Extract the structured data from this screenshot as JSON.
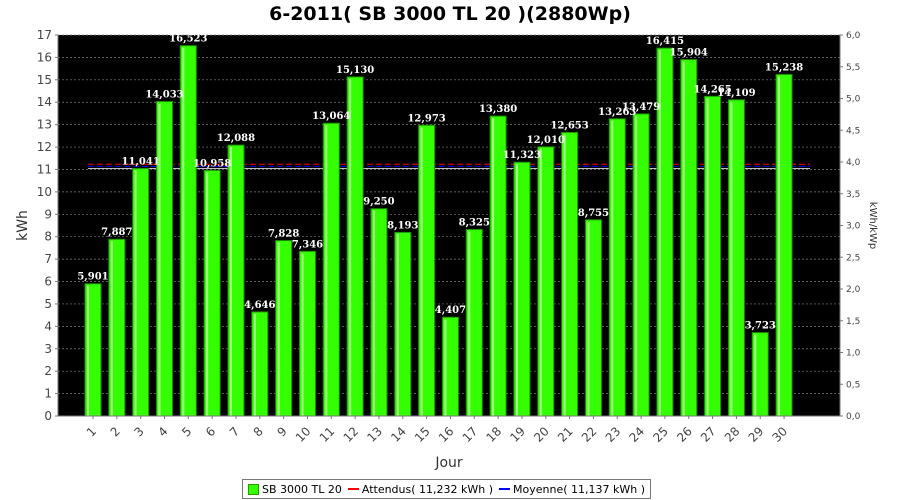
{
  "title": "6-2011( SB 3000 TL 20 )(2880Wp)",
  "colors": {
    "bar": "#33ff00",
    "bar_border": "#1f8c00",
    "plot_background": "#000000",
    "grid": "#7f7f7f",
    "attendu": "#ff0000",
    "moyenne": "#0000ff",
    "reference_line": "#ffffff"
  },
  "legend": {
    "bar_label": "SB 3000 TL 20",
    "attendu_label": "Attendus( 11,232 kWh )",
    "moyenne_label": "Moyenne( 11,137 kWh )"
  },
  "chart_data": {
    "type": "bar",
    "title": "6-2011( SB 3000 TL 20 )(2880Wp)",
    "xlabel": "Jour",
    "ylabel": "kWh",
    "y2label": "kWh/kWp",
    "ylim": [
      0,
      17
    ],
    "yticks": [
      "0",
      "1",
      "2",
      "3",
      "4",
      "5",
      "6",
      "7",
      "8",
      "9",
      "10",
      "11",
      "12",
      "13",
      "14",
      "15",
      "16",
      "17"
    ],
    "y2lim": [
      0,
      6
    ],
    "y2ticks": [
      "0,0",
      "0,5",
      "1,0",
      "1,5",
      "2,0",
      "2,5",
      "3,0",
      "3,5",
      "4,0",
      "4,5",
      "5,0",
      "5,5",
      "6,0"
    ],
    "categories": [
      "1",
      "2",
      "3",
      "4",
      "5",
      "6",
      "7",
      "8",
      "9",
      "10",
      "11",
      "12",
      "13",
      "14",
      "15",
      "16",
      "17",
      "18",
      "19",
      "20",
      "21",
      "22",
      "23",
      "24",
      "25",
      "26",
      "27",
      "28",
      "29",
      "30"
    ],
    "values": [
      5.901,
      7.887,
      11.041,
      14.033,
      16.523,
      10.958,
      12.088,
      4.646,
      7.828,
      7.346,
      13.064,
      15.13,
      9.25,
      8.193,
      12.973,
      4.407,
      8.325,
      13.38,
      11.323,
      12.01,
      12.653,
      8.755,
      13.263,
      13.479,
      16.415,
      15.904,
      14.265,
      14.109,
      3.723,
      15.238
    ],
    "value_labels": [
      "5,901",
      "7,887",
      "11,041",
      "14,033",
      "16,523",
      "10,958",
      "12,088",
      "4,646",
      "7,828",
      "7,346",
      "13,064",
      "15,130",
      "9,250",
      "8,193",
      "12,973",
      "4,407",
      "8,325",
      "13,380",
      "11,323",
      "12,010",
      "12,653",
      "8,755",
      "13,263",
      "13,479",
      "16,415",
      "15,904",
      "14,265",
      "14,109",
      "3,723",
      "15,238"
    ],
    "series": [
      {
        "name": "SB 3000 TL 20"
      }
    ],
    "reference_lines": [
      {
        "name": "Attendus( 11,232 kWh )",
        "value": 11.232
      },
      {
        "name": "Moyenne( 11,137 kWh )",
        "value": 11.137
      }
    ],
    "grid": true,
    "legend_position": "bottom"
  }
}
